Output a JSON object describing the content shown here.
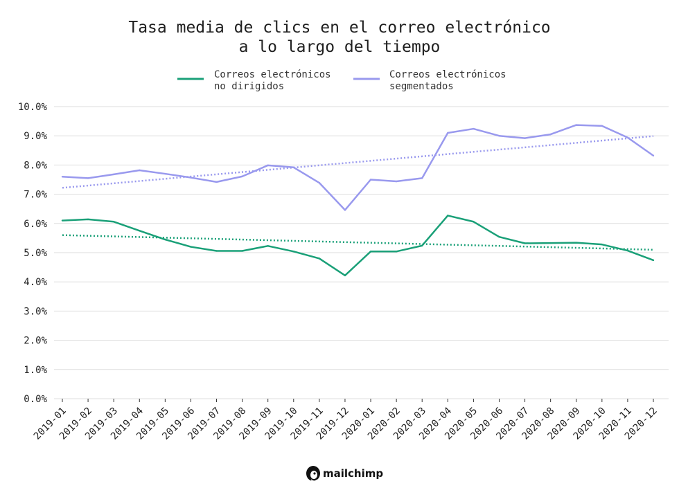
{
  "chart_data": {
    "type": "line",
    "title": [
      "Tasa media de clics en el correo electrónico",
      "a lo largo del tiempo"
    ],
    "xlabel": "",
    "ylabel": "",
    "ylim": [
      0,
      10
    ],
    "y_ticks": [
      "0.0%",
      "1.0%",
      "2.0%",
      "3.0%",
      "4.0%",
      "5.0%",
      "6.0%",
      "7.0%",
      "8.0%",
      "9.0%",
      "10.0%"
    ],
    "grid": true,
    "legend_position": "top-center",
    "categories": [
      "2019-01",
      "2019-02",
      "2019-03",
      "2019-04",
      "2019-05",
      "2019-06",
      "2019-07",
      "2019-08",
      "2019-09",
      "2019-10",
      "2019-11",
      "2019-12",
      "2020-01",
      "2020-02",
      "2020-03",
      "2020-04",
      "2020-05",
      "2020-06",
      "2020-07",
      "2020-08",
      "2020-09",
      "2020-10",
      "2020-11",
      "2020-12"
    ],
    "series": [
      {
        "name": [
          "Correos electrónicos",
          "no dirigidos"
        ],
        "color": "#1aa078",
        "values": [
          6.1,
          6.14,
          6.06,
          5.75,
          5.45,
          5.2,
          5.06,
          5.06,
          5.23,
          5.04,
          4.8,
          4.22,
          5.04,
          5.04,
          5.24,
          6.27,
          6.06,
          5.54,
          5.32,
          5.33,
          5.34,
          5.28,
          5.07,
          4.74
        ],
        "trend": [
          5.6,
          5.1
        ]
      },
      {
        "name": [
          "Correos electrónicos",
          "segmentados"
        ],
        "color": "#9999ee",
        "values": [
          7.6,
          7.55,
          7.68,
          7.82,
          7.7,
          7.57,
          7.42,
          7.61,
          7.99,
          7.92,
          7.39,
          6.46,
          7.5,
          7.44,
          7.55,
          9.1,
          9.24,
          9.0,
          8.92,
          9.05,
          9.37,
          9.34,
          8.94,
          8.32
        ],
        "trend": [
          7.22,
          8.99
        ]
      }
    ]
  },
  "logo": {
    "text": "mailchimp",
    "icon": "mailchimp-freddie-icon"
  }
}
